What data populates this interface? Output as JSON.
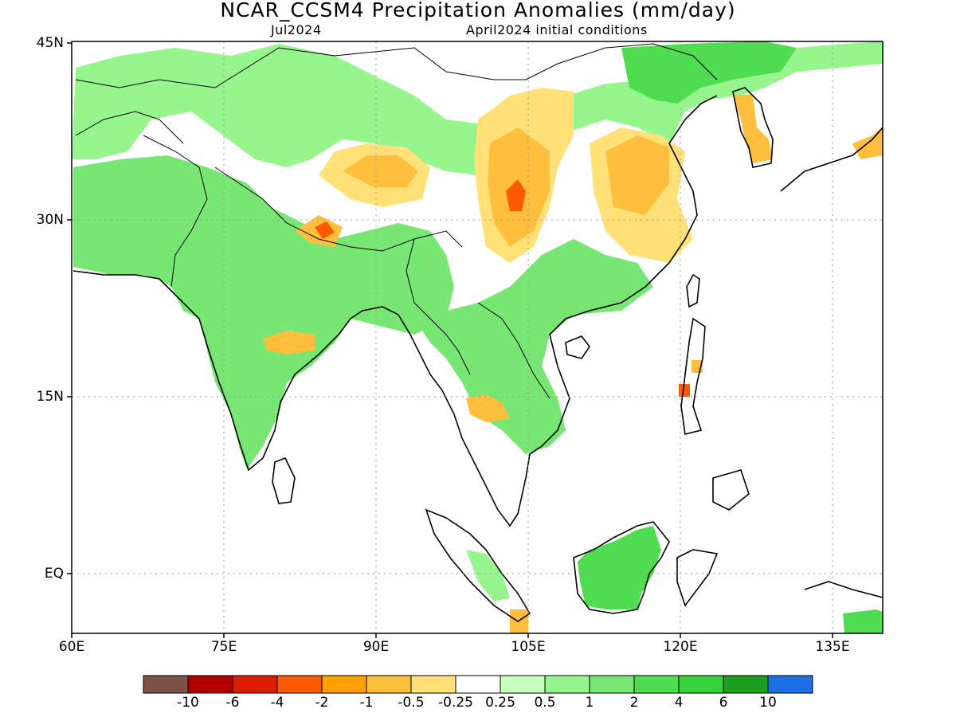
{
  "title": "NCAR_CCSM4 Precipitation Anomalies (mm/day)",
  "subtitle_left": "Jul2024",
  "subtitle_right": "April2024 initial conditions",
  "lat_labels": [
    "45N",
    "30N",
    "15N",
    "EQ"
  ],
  "lon_labels": [
    "60E",
    "75E",
    "90E",
    "105E",
    "120E",
    "135E"
  ],
  "colorbar": {
    "colors": [
      "#7d5347",
      "#b40000",
      "#dc1e00",
      "#fa5a00",
      "#ffa000",
      "#ffbe3c",
      "#ffe178",
      "#ffffff",
      "#c8ffbe",
      "#96f58c",
      "#78e672",
      "#50dc50",
      "#37d23c",
      "#1ea01e",
      "#1e6ee6"
    ],
    "labels": [
      "-10",
      "-6",
      "-4",
      "-2",
      "-1",
      "-0.5",
      "-0.25",
      "0.25",
      "0.5",
      "1",
      "2",
      "4",
      "6",
      "10"
    ]
  },
  "map_data": {
    "lon_range": [
      60,
      140
    ],
    "lat_range": [
      -6,
      45
    ]
  }
}
